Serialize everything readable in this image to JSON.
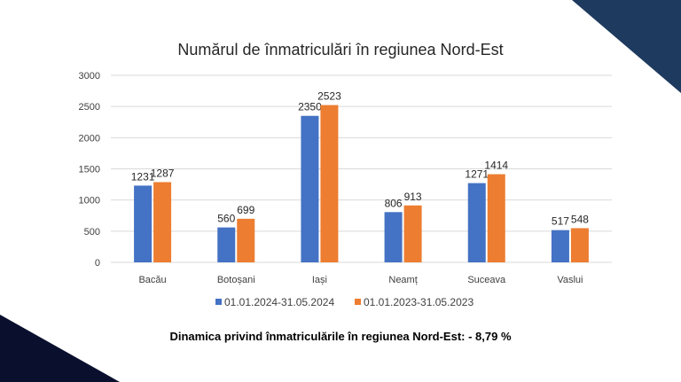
{
  "colors": {
    "series_2024": "#4472c4",
    "series_2023": "#ed7d31",
    "corner_top": "#1e3a5f",
    "corner_bottom": "#0a0f2e",
    "grid": "#d9d9d9"
  },
  "chart_data": {
    "type": "bar",
    "title": "Numărul de înmatriculări în regiunea Nord-Est",
    "categories": [
      "Bacău",
      "Botoșani",
      "Iași",
      "Neamț",
      "Suceava",
      "Vaslui"
    ],
    "series": [
      {
        "name": "01.01.2024-31.05.2024",
        "values": [
          1231,
          560,
          2350,
          806,
          1271,
          517
        ]
      },
      {
        "name": "01.01.2023-31.05.2023",
        "values": [
          1287,
          699,
          2523,
          913,
          1414,
          548
        ]
      }
    ],
    "ylim": [
      0,
      3000
    ],
    "yticks": [
      0,
      500,
      1000,
      1500,
      2000,
      2500,
      3000
    ],
    "grid": true,
    "legend": "bottom",
    "xlabel": "",
    "ylabel": ""
  },
  "footer": "Dinamica privind înmatriculările în regiunea Nord-Est: - 8,79 %"
}
